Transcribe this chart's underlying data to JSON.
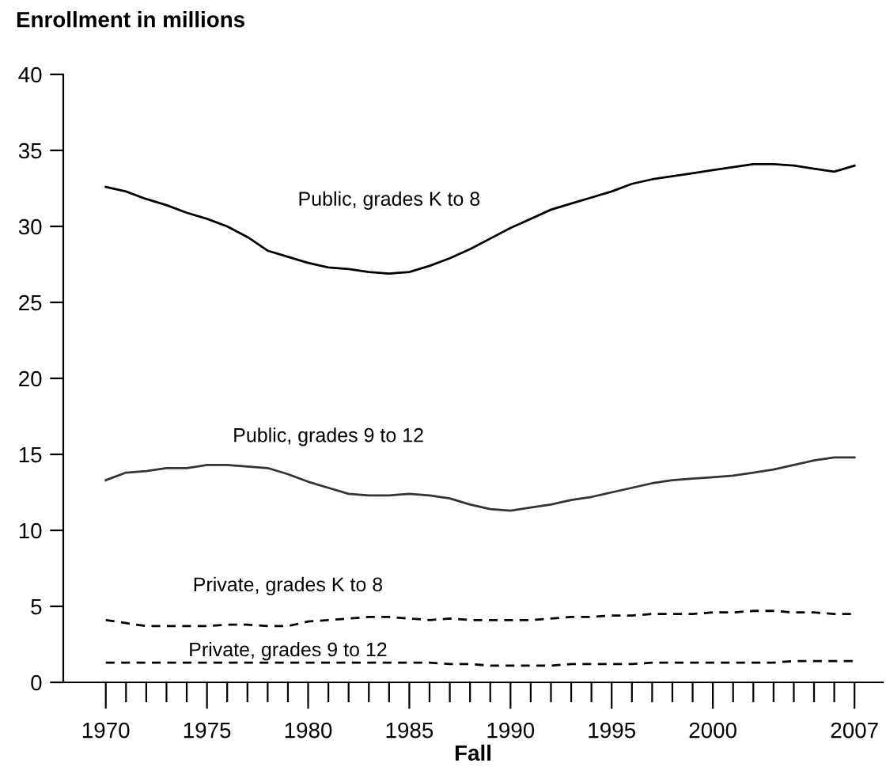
{
  "chart_data": {
    "type": "line",
    "ylabel": "Enrollment in millions",
    "xlabel": "Fall",
    "x": [
      1970,
      1971,
      1972,
      1973,
      1974,
      1975,
      1976,
      1977,
      1978,
      1979,
      1980,
      1981,
      1982,
      1983,
      1984,
      1985,
      1986,
      1987,
      1988,
      1989,
      1990,
      1991,
      1992,
      1993,
      1994,
      1995,
      1996,
      1997,
      1998,
      1999,
      2000,
      2001,
      2002,
      2003,
      2004,
      2005,
      2006,
      2007
    ],
    "series": [
      {
        "name": "Public, grades K to 8",
        "color": "#000000",
        "line_style": "solid",
        "values": [
          32.6,
          32.3,
          31.8,
          31.4,
          30.9,
          30.5,
          30.0,
          29.3,
          28.4,
          28.0,
          27.6,
          27.3,
          27.2,
          27.0,
          26.9,
          27.0,
          27.4,
          27.9,
          28.5,
          29.2,
          29.9,
          30.5,
          31.1,
          31.5,
          31.9,
          32.3,
          32.8,
          33.1,
          33.3,
          33.5,
          33.7,
          33.9,
          34.1,
          34.1,
          34.0,
          33.8,
          33.6,
          34.0
        ]
      },
      {
        "name": "Public, grades 9 to 12",
        "color": "#333333",
        "line_style": "solid",
        "values": [
          13.3,
          13.8,
          13.9,
          14.1,
          14.1,
          14.3,
          14.3,
          14.2,
          14.1,
          13.7,
          13.2,
          12.8,
          12.4,
          12.3,
          12.3,
          12.4,
          12.3,
          12.1,
          11.7,
          11.4,
          11.3,
          11.5,
          11.7,
          12.0,
          12.2,
          12.5,
          12.8,
          13.1,
          13.3,
          13.4,
          13.5,
          13.6,
          13.8,
          14.0,
          14.3,
          14.6,
          14.8,
          14.8
        ]
      },
      {
        "name": "Private, grades K to 8",
        "color": "#000000",
        "line_style": "dashed",
        "values": [
          4.1,
          3.9,
          3.7,
          3.7,
          3.7,
          3.7,
          3.8,
          3.8,
          3.7,
          3.7,
          4.0,
          4.1,
          4.2,
          4.3,
          4.3,
          4.2,
          4.1,
          4.2,
          4.1,
          4.1,
          4.1,
          4.1,
          4.2,
          4.3,
          4.3,
          4.4,
          4.4,
          4.5,
          4.5,
          4.5,
          4.6,
          4.6,
          4.7,
          4.7,
          4.6,
          4.6,
          4.5,
          4.5
        ]
      },
      {
        "name": "Private, grades 9 to 12",
        "color": "#000000",
        "line_style": "dashed",
        "values": [
          1.3,
          1.3,
          1.3,
          1.3,
          1.3,
          1.3,
          1.3,
          1.3,
          1.3,
          1.3,
          1.3,
          1.3,
          1.3,
          1.3,
          1.3,
          1.3,
          1.3,
          1.2,
          1.2,
          1.1,
          1.1,
          1.1,
          1.1,
          1.2,
          1.2,
          1.2,
          1.2,
          1.3,
          1.3,
          1.3,
          1.3,
          1.3,
          1.3,
          1.3,
          1.4,
          1.4,
          1.4,
          1.4
        ]
      }
    ],
    "xlim": [
      1967.9,
      2008.4
    ],
    "xticks": [
      1970,
      {
        "value": 1971,
        "label": null
      },
      {
        "value": 1972,
        "label": null
      },
      {
        "value": 1973,
        "label": null
      },
      {
        "value": 1974,
        "label": null
      },
      1975,
      {
        "value": 1976,
        "label": null
      },
      {
        "value": 1977,
        "label": null
      },
      {
        "value": 1978,
        "label": null
      },
      {
        "value": 1979,
        "label": null
      },
      1980,
      {
        "value": 1981,
        "label": null
      },
      {
        "value": 1982,
        "label": null
      },
      {
        "value": 1983,
        "label": null
      },
      {
        "value": 1984,
        "label": null
      },
      1985,
      {
        "value": 1986,
        "label": null
      },
      {
        "value": 1987,
        "label": null
      },
      {
        "value": 1988,
        "label": null
      },
      {
        "value": 1989,
        "label": null
      },
      1990,
      {
        "value": 1991,
        "label": null
      },
      {
        "value": 1992,
        "label": null
      },
      {
        "value": 1993,
        "label": null
      },
      {
        "value": 1994,
        "label": null
      },
      1995,
      {
        "value": 1996,
        "label": null
      },
      {
        "value": 1997,
        "label": null
      },
      {
        "value": 1998,
        "label": null
      },
      {
        "value": 1999,
        "label": null
      },
      2000,
      {
        "value": 2001,
        "label": null
      },
      {
        "value": 2002,
        "label": null
      },
      {
        "value": 2003,
        "label": null
      },
      {
        "value": 2004,
        "label": null
      },
      {
        "value": 2005,
        "label": null
      },
      {
        "value": 2006,
        "label": null
      },
      2007
    ],
    "ylim": [
      0,
      40
    ],
    "yticks": [
      0,
      5,
      10,
      15,
      20,
      25,
      30,
      35,
      40
    ],
    "grid": false,
    "legend": false,
    "marker": "none"
  }
}
